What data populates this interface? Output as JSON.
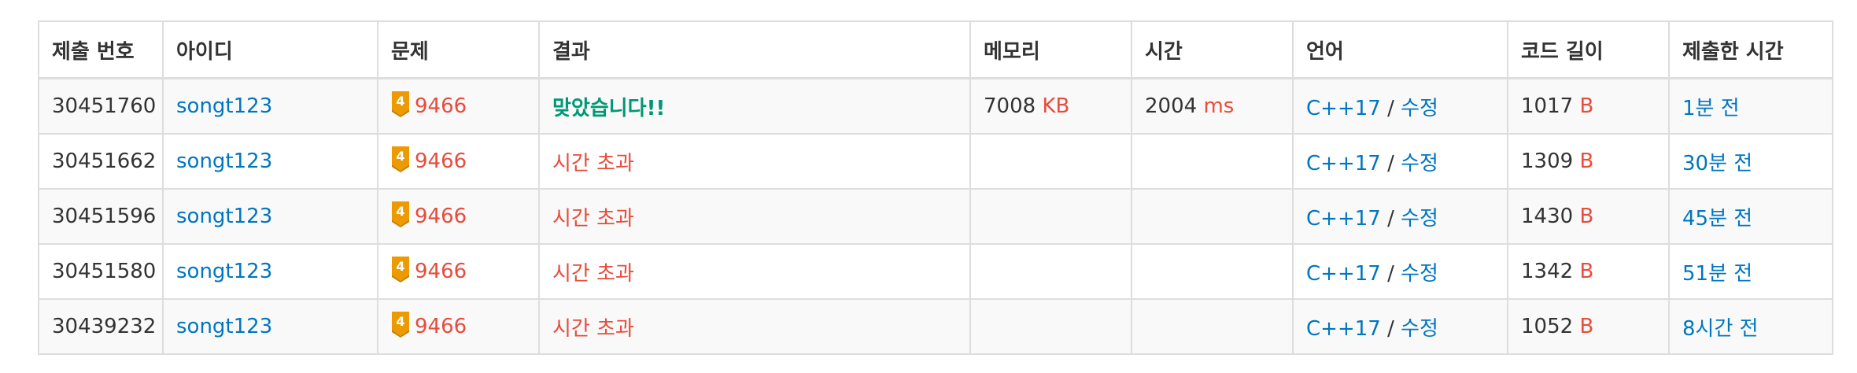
{
  "columns": [
    "제출 번호",
    "아이디",
    "문제",
    "결과",
    "메모리",
    "시간",
    "언어",
    "코드 길이",
    "제출한 시간"
  ],
  "colors": {
    "link": "#0076c0",
    "accepted": "#009874",
    "error": "#e74c3c",
    "tier_gold": "#ec9a00",
    "row_stripe": "#f9f9f9",
    "border": "#dddddd"
  },
  "rows": [
    {
      "submission_id": "30451760",
      "user": "songt123",
      "tier_icon": "tier-gold-4-icon",
      "tier_level": "4",
      "problem": "9466",
      "result": "맞았습니다!!",
      "result_type": "accepted",
      "memory": "7008",
      "memory_unit": "KB",
      "time": "2004",
      "time_unit": "ms",
      "language": "C++17",
      "separator": "/",
      "edit": "수정",
      "code_length": "1017",
      "code_length_unit": "B",
      "submitted_at": "1분 전"
    },
    {
      "submission_id": "30451662",
      "user": "songt123",
      "tier_icon": "tier-gold-4-icon",
      "tier_level": "4",
      "problem": "9466",
      "result": "시간 초과",
      "result_type": "tle",
      "memory": "",
      "memory_unit": "",
      "time": "",
      "time_unit": "",
      "language": "C++17",
      "separator": "/",
      "edit": "수정",
      "code_length": "1309",
      "code_length_unit": "B",
      "submitted_at": "30분 전"
    },
    {
      "submission_id": "30451596",
      "user": "songt123",
      "tier_icon": "tier-gold-4-icon",
      "tier_level": "4",
      "problem": "9466",
      "result": "시간 초과",
      "result_type": "tle",
      "memory": "",
      "memory_unit": "",
      "time": "",
      "time_unit": "",
      "language": "C++17",
      "separator": "/",
      "edit": "수정",
      "code_length": "1430",
      "code_length_unit": "B",
      "submitted_at": "45분 전"
    },
    {
      "submission_id": "30451580",
      "user": "songt123",
      "tier_icon": "tier-gold-4-icon",
      "tier_level": "4",
      "problem": "9466",
      "result": "시간 초과",
      "result_type": "tle",
      "memory": "",
      "memory_unit": "",
      "time": "",
      "time_unit": "",
      "language": "C++17",
      "separator": "/",
      "edit": "수정",
      "code_length": "1342",
      "code_length_unit": "B",
      "submitted_at": "51분 전"
    },
    {
      "submission_id": "30439232",
      "user": "songt123",
      "tier_icon": "tier-gold-4-icon",
      "tier_level": "4",
      "problem": "9466",
      "result": "시간 초과",
      "result_type": "tle",
      "memory": "",
      "memory_unit": "",
      "time": "",
      "time_unit": "",
      "language": "C++17",
      "separator": "/",
      "edit": "수정",
      "code_length": "1052",
      "code_length_unit": "B",
      "submitted_at": "8시간 전"
    }
  ]
}
